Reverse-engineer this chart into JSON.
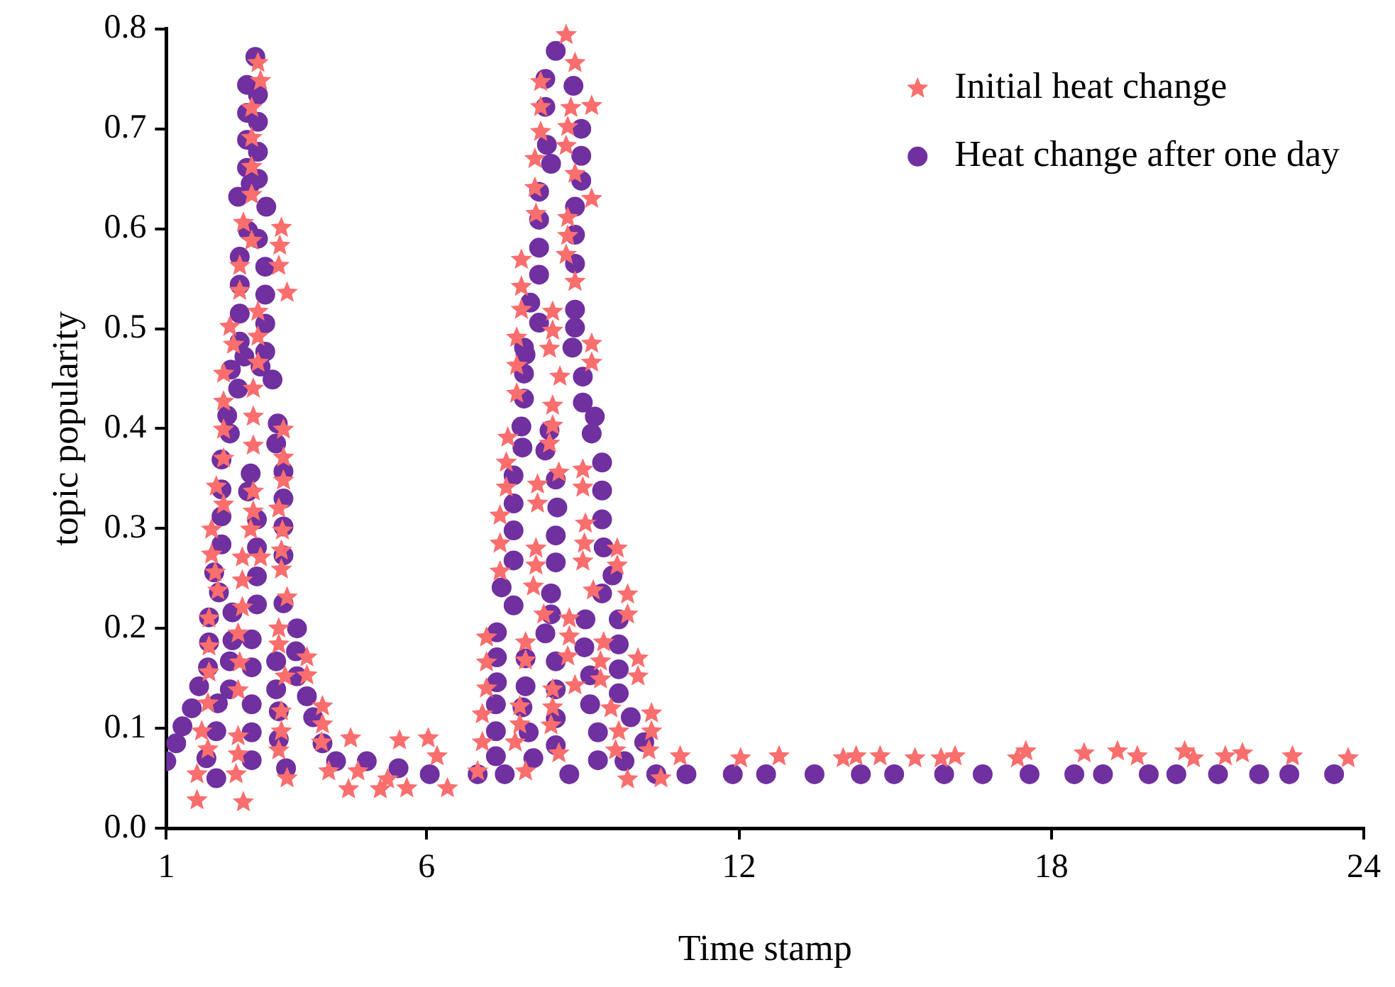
{
  "chart_data": {
    "type": "scatter",
    "xlabel": "Time stamp",
    "ylabel": "topic popularity",
    "xlim": [
      1,
      24
    ],
    "ylim": [
      0,
      0.8
    ],
    "xticks": [
      1,
      6,
      12,
      18,
      24
    ],
    "yticks": [
      {
        "value": 0,
        "label": "0.0"
      },
      0.1,
      0.2,
      0.3,
      0.4,
      0.5,
      0.6,
      0.7,
      0.8
    ],
    "legend": "top right",
    "grid": false,
    "series": [
      {
        "name": "Initial heat change",
        "color": "#fa6e6e",
        "marker": "star",
        "x": [
          2.76,
          2.81,
          2.64,
          2.64,
          2.64,
          2.64,
          2.48,
          3.21,
          2.64,
          3.18,
          2.41,
          3.16,
          2.41,
          3.32,
          2.76,
          2.22,
          2.76,
          2.29,
          2.76,
          2.1,
          2.67,
          2.1,
          2.67,
          2.1,
          3.25,
          2.67,
          3.25,
          2.1,
          1.96,
          2.67,
          3.25,
          2.1,
          2.67,
          3.16,
          1.87,
          2.62,
          3.23,
          1.87,
          2.46,
          2.81,
          3.21,
          3.21,
          1.94,
          2.46,
          1.99,
          3.32,
          2.46,
          1.82,
          2.38,
          3.16,
          1.82,
          3.16,
          2.41,
          3.7,
          1.82,
          3.28,
          3.7,
          2.38,
          1.8,
          4.0,
          3.21,
          1.68,
          2.38,
          3.21,
          4.0,
          1.8,
          2.38,
          3.16,
          3.98,
          4.54,
          5.48,
          6.03,
          6.2,
          1.59,
          2.34,
          3.32,
          4.12,
          4.68,
          5.25,
          4.5,
          5.11,
          5.62,
          6.4,
          1.59,
          2.48,
          8.68,
          8.85,
          8.19,
          8.19,
          8.77,
          9.17,
          8.19,
          8.71,
          8.68,
          8.08,
          8.85,
          8.08,
          9.17,
          8.1,
          8.71,
          8.71,
          8.68,
          7.82,
          8.85,
          7.82,
          7.82,
          8.42,
          8.42,
          7.73,
          8.36,
          9.17,
          9.17,
          7.73,
          8.56,
          7.73,
          8.42,
          8.42,
          7.56,
          8.36,
          7.53,
          8.54,
          9.0,
          8.13,
          7.53,
          9.0,
          8.13,
          7.41,
          9.05,
          7.41,
          8.1,
          9.03,
          9.66,
          7.41,
          8.1,
          9.0,
          9.66,
          8.05,
          9.2,
          9.86,
          8.25,
          8.74,
          9.86,
          7.15,
          7.9,
          8.74,
          9.4,
          7.15,
          7.9,
          8.71,
          9.34,
          10.06,
          7.15,
          8.42,
          8.85,
          9.34,
          10.06,
          7.07,
          7.79,
          8.42,
          9.54,
          10.32,
          7.79,
          8.39,
          9.69,
          10.32,
          7.07,
          7.7,
          8.54,
          9.63,
          10.27,
          10.87,
          6.98,
          7.9,
          9.86,
          10.5,
          12.03,
          12.77,
          14.0,
          14.25,
          14.71,
          15.38,
          15.88,
          16.15,
          17.35,
          17.51,
          18.63,
          19.27,
          19.65,
          20.56,
          20.73,
          21.34,
          21.67,
          22.63,
          23.7
        ],
        "values": [
          0.766,
          0.748,
          0.721,
          0.691,
          0.662,
          0.634,
          0.606,
          0.601,
          0.588,
          0.583,
          0.563,
          0.563,
          0.538,
          0.536,
          0.517,
          0.502,
          0.492,
          0.484,
          0.466,
          0.455,
          0.44,
          0.427,
          0.412,
          0.399,
          0.399,
          0.383,
          0.371,
          0.37,
          0.342,
          0.337,
          0.348,
          0.324,
          0.317,
          0.32,
          0.299,
          0.299,
          0.298,
          0.274,
          0.271,
          0.271,
          0.278,
          0.259,
          0.256,
          0.248,
          0.238,
          0.231,
          0.221,
          0.21,
          0.195,
          0.2,
          0.182,
          0.184,
          0.166,
          0.171,
          0.156,
          0.152,
          0.153,
          0.138,
          0.125,
          0.122,
          0.117,
          0.097,
          0.092,
          0.097,
          0.104,
          0.079,
          0.074,
          0.078,
          0.086,
          0.09,
          0.088,
          0.09,
          0.072,
          0.054,
          0.054,
          0.05,
          0.057,
          0.057,
          0.049,
          0.039,
          0.039,
          0.04,
          0.04,
          0.028,
          0.026,
          0.794,
          0.766,
          0.747,
          0.722,
          0.721,
          0.723,
          0.697,
          0.702,
          0.683,
          0.67,
          0.655,
          0.641,
          0.63,
          0.615,
          0.611,
          0.593,
          0.574,
          0.569,
          0.547,
          0.542,
          0.519,
          0.517,
          0.498,
          0.491,
          0.48,
          0.485,
          0.466,
          0.463,
          0.452,
          0.435,
          0.423,
          0.403,
          0.391,
          0.385,
          0.366,
          0.356,
          0.359,
          0.344,
          0.341,
          0.341,
          0.325,
          0.313,
          0.305,
          0.285,
          0.28,
          0.285,
          0.28,
          0.257,
          0.263,
          0.267,
          0.263,
          0.242,
          0.238,
          0.234,
          0.214,
          0.21,
          0.214,
          0.191,
          0.186,
          0.192,
          0.186,
          0.166,
          0.168,
          0.172,
          0.167,
          0.17,
          0.14,
          0.139,
          0.143,
          0.149,
          0.152,
          0.114,
          0.122,
          0.121,
          0.12,
          0.115,
          0.104,
          0.103,
          0.097,
          0.097,
          0.086,
          0.086,
          0.075,
          0.078,
          0.078,
          0.072,
          0.057,
          0.057,
          0.049,
          0.05,
          0.07,
          0.072,
          0.07,
          0.072,
          0.072,
          0.07,
          0.07,
          0.072,
          0.07,
          0.077,
          0.075,
          0.077,
          0.072,
          0.077,
          0.07,
          0.072,
          0.075,
          0.072,
          0.07
        ]
      },
      {
        "name": "Heat change after one day",
        "color": "#7030a0",
        "marker": "circle",
        "x": [
          1.0,
          1.19,
          1.31,
          1.49,
          1.63,
          1.8,
          1.82,
          1.82,
          2.01,
          1.92,
          2.06,
          2.06,
          2.06,
          2.06,
          2.22,
          2.17,
          1.96,
          1.77,
          1.96,
          1.99,
          2.22,
          2.22,
          2.27,
          2.27,
          2.64,
          2.64,
          2.64,
          2.64,
          2.64,
          2.74,
          2.74,
          2.74,
          2.74,
          2.57,
          2.62,
          3.3,
          3.16,
          3.16,
          3.11,
          3.11,
          3.25,
          3.25,
          3.25,
          3.25,
          3.25,
          3.11,
          3.14,
          3.51,
          3.49,
          3.51,
          3.7,
          3.82,
          4.0,
          4.26,
          4.85,
          5.46,
          6.06,
          2.71,
          2.55,
          2.76,
          2.55,
          2.76,
          2.55,
          2.76,
          2.55,
          2.76,
          2.62,
          2.38,
          2.92,
          2.57,
          2.76,
          2.41,
          2.9,
          2.41,
          2.9,
          2.41,
          2.9,
          2.41,
          2.5,
          2.9,
          2.81,
          3.04,
          2.24,
          2.38,
          8.48,
          8.28,
          8.82,
          8.28,
          8.97,
          8.31,
          8.97,
          8.39,
          8.97,
          8.16,
          8.85,
          8.16,
          8.85,
          8.16,
          8.85,
          8.16,
          7.99,
          8.16,
          8.85,
          8.85,
          8.8,
          7.9,
          7.87,
          7.87,
          9.0,
          7.87,
          9.0,
          9.23,
          7.82,
          8.36,
          9.17,
          7.84,
          8.28,
          9.37,
          7.67,
          8.48,
          9.37,
          7.67,
          8.51,
          9.37,
          7.67,
          8.48,
          9.4,
          7.67,
          8.48,
          9.57,
          7.44,
          8.39,
          9.37,
          7.67,
          8.39,
          9.05,
          9.69,
          7.35,
          8.28,
          9.03,
          9.69,
          7.35,
          7.9,
          8.48,
          9.14,
          9.69,
          7.35,
          7.9,
          8.48,
          9.69,
          7.33,
          7.84,
          8.48,
          9.14,
          9.92,
          7.33,
          7.96,
          9.29,
          10.18,
          7.33,
          8.05,
          8.48,
          9.29,
          9.8,
          6.98,
          7.5,
          8.74,
          10.41,
          10.99,
          11.88,
          12.52,
          13.45,
          14.34,
          14.98,
          15.94,
          16.68,
          17.58,
          18.44,
          18.99,
          19.87,
          20.4,
          21.2,
          21.99,
          22.57,
          23.43
        ],
        "values": [
          0.067,
          0.085,
          0.102,
          0.12,
          0.142,
          0.161,
          0.186,
          0.211,
          0.236,
          0.256,
          0.284,
          0.312,
          0.339,
          0.369,
          0.395,
          0.413,
          0.05,
          0.07,
          0.097,
          0.125,
          0.139,
          0.167,
          0.188,
          0.216,
          0.068,
          0.096,
          0.124,
          0.161,
          0.189,
          0.224,
          0.252,
          0.281,
          0.309,
          0.337,
          0.355,
          0.06,
          0.089,
          0.117,
          0.139,
          0.167,
          0.225,
          0.273,
          0.302,
          0.33,
          0.357,
          0.385,
          0.405,
          0.2,
          0.177,
          0.152,
          0.132,
          0.111,
          0.085,
          0.067,
          0.067,
          0.06,
          0.054,
          0.772,
          0.744,
          0.734,
          0.716,
          0.707,
          0.689,
          0.677,
          0.661,
          0.65,
          0.645,
          0.632,
          0.622,
          0.598,
          0.59,
          0.572,
          0.562,
          0.544,
          0.534,
          0.515,
          0.505,
          0.487,
          0.472,
          0.477,
          0.462,
          0.449,
          0.459,
          0.44,
          0.778,
          0.75,
          0.743,
          0.722,
          0.7,
          0.684,
          0.673,
          0.665,
          0.648,
          0.637,
          0.622,
          0.609,
          0.594,
          0.581,
          0.565,
          0.554,
          0.526,
          0.506,
          0.519,
          0.501,
          0.481,
          0.474,
          0.481,
          0.455,
          0.452,
          0.43,
          0.426,
          0.412,
          0.402,
          0.398,
          0.395,
          0.381,
          0.378,
          0.366,
          0.353,
          0.349,
          0.338,
          0.325,
          0.321,
          0.309,
          0.298,
          0.293,
          0.281,
          0.268,
          0.266,
          0.253,
          0.241,
          0.235,
          0.235,
          0.223,
          0.214,
          0.209,
          0.209,
          0.196,
          0.195,
          0.181,
          0.184,
          0.171,
          0.17,
          0.167,
          0.153,
          0.159,
          0.146,
          0.142,
          0.139,
          0.135,
          0.124,
          0.121,
          0.11,
          0.124,
          0.111,
          0.097,
          0.096,
          0.096,
          0.086,
          0.072,
          0.07,
          0.083,
          0.068,
          0.067,
          0.054,
          0.054,
          0.054,
          0.054,
          0.054,
          0.054,
          0.054,
          0.054,
          0.054,
          0.054,
          0.054,
          0.054,
          0.054,
          0.054,
          0.054,
          0.054,
          0.054,
          0.054,
          0.054,
          0.054,
          0.054
        ]
      }
    ]
  }
}
